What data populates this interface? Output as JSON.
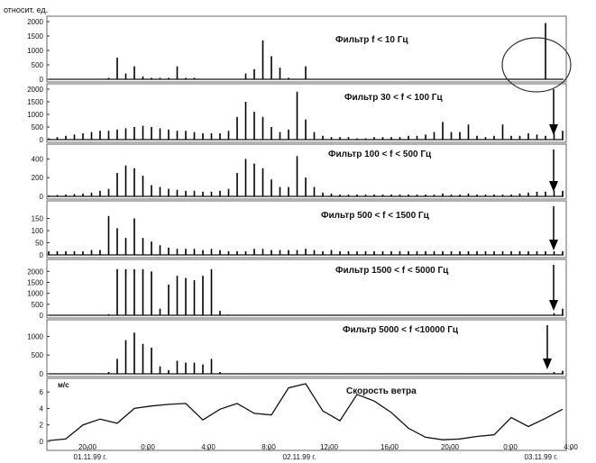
{
  "unit_label": "относит. ед.",
  "chart_data": [
    {
      "type": "area",
      "title": "Фильтр f < 10 Гц",
      "ylim": [
        0,
        2000
      ],
      "yticks": [
        "2000",
        "1500",
        "1000",
        "500",
        "0"
      ],
      "annotation": "circled spike",
      "x": [
        0,
        1,
        2,
        3,
        4,
        5,
        6,
        7,
        8,
        9,
        10,
        11,
        12,
        13,
        14,
        15,
        16,
        17,
        18,
        19,
        20,
        21,
        22,
        23,
        24,
        25,
        26,
        27,
        28,
        29,
        30,
        31,
        32,
        33,
        34,
        35,
        36,
        37,
        38,
        39,
        40,
        41,
        42,
        43,
        44,
        45,
        46,
        47,
        48,
        49,
        50,
        51,
        52,
        53,
        54,
        55,
        56,
        57,
        58,
        59,
        60
      ],
      "values": [
        0,
        0,
        0,
        0,
        0,
        0,
        0,
        50,
        750,
        200,
        450,
        100,
        50,
        50,
        50,
        450,
        50,
        50,
        0,
        0,
        0,
        0,
        0,
        200,
        350,
        1350,
        800,
        400,
        50,
        0,
        450,
        0,
        0,
        0,
        0,
        0,
        0,
        0,
        0,
        0,
        0,
        0,
        0,
        0,
        0,
        0,
        0,
        0,
        0,
        0,
        0,
        0,
        0,
        0,
        0,
        0,
        0,
        0,
        1950,
        0,
        0
      ]
    },
    {
      "type": "area",
      "title": "Фильтр 30 < f < 100 Гц",
      "ylim": [
        0,
        2000
      ],
      "yticks": [
        "2000",
        "1500",
        "1000",
        "500",
        "0"
      ],
      "x": [
        0,
        1,
        2,
        3,
        4,
        5,
        6,
        7,
        8,
        9,
        10,
        11,
        12,
        13,
        14,
        15,
        16,
        17,
        18,
        19,
        20,
        21,
        22,
        23,
        24,
        25,
        26,
        27,
        28,
        29,
        30,
        31,
        32,
        33,
        34,
        35,
        36,
        37,
        38,
        39,
        40,
        41,
        42,
        43,
        44,
        45,
        46,
        47,
        48,
        49,
        50,
        51,
        52,
        53,
        54,
        55,
        56,
        57,
        58,
        59,
        60
      ],
      "values": [
        50,
        100,
        150,
        200,
        250,
        300,
        350,
        350,
        400,
        450,
        500,
        550,
        500,
        450,
        400,
        350,
        350,
        300,
        250,
        250,
        250,
        350,
        900,
        1500,
        1100,
        900,
        500,
        300,
        400,
        1900,
        800,
        300,
        150,
        100,
        100,
        100,
        50,
        50,
        100,
        100,
        100,
        100,
        150,
        150,
        200,
        300,
        700,
        300,
        300,
        600,
        150,
        100,
        150,
        600,
        150,
        150,
        250,
        200,
        150,
        250,
        350
      ]
    },
    {
      "type": "area",
      "title": "Фильтр 100 < f < 500 Гц",
      "ylim": [
        0,
        500
      ],
      "yticks": [
        "400",
        "200",
        "0"
      ],
      "x": [
        0,
        1,
        2,
        3,
        4,
        5,
        6,
        7,
        8,
        9,
        10,
        11,
        12,
        13,
        14,
        15,
        16,
        17,
        18,
        19,
        20,
        21,
        22,
        23,
        24,
        25,
        26,
        27,
        28,
        29,
        30,
        31,
        32,
        33,
        34,
        35,
        36,
        37,
        38,
        39,
        40,
        41,
        42,
        43,
        44,
        45,
        46,
        47,
        48,
        49,
        50,
        51,
        52,
        53,
        54,
        55,
        56,
        57,
        58,
        59,
        60
      ],
      "values": [
        10,
        15,
        20,
        25,
        30,
        40,
        60,
        80,
        250,
        330,
        300,
        220,
        120,
        100,
        80,
        70,
        60,
        60,
        50,
        50,
        60,
        80,
        250,
        400,
        350,
        300,
        180,
        100,
        100,
        430,
        200,
        100,
        40,
        30,
        20,
        20,
        20,
        20,
        20,
        20,
        20,
        20,
        20,
        20,
        20,
        20,
        30,
        20,
        20,
        30,
        20,
        20,
        20,
        20,
        20,
        30,
        40,
        50,
        50,
        60,
        60
      ]
    },
    {
      "type": "area",
      "title": "Фильтр 500 < f < 1500 Гц",
      "ylim": [
        0,
        200
      ],
      "yticks": [
        "150",
        "100",
        "50",
        "0"
      ],
      "x": [
        0,
        1,
        2,
        3,
        4,
        5,
        6,
        7,
        8,
        9,
        10,
        11,
        12,
        13,
        14,
        15,
        16,
        17,
        18,
        19,
        20,
        21,
        22,
        23,
        24,
        25,
        26,
        27,
        28,
        29,
        30,
        31,
        32,
        33,
        34,
        35,
        36,
        37,
        38,
        39,
        40,
        41,
        42,
        43,
        44,
        45,
        46,
        47,
        48,
        49,
        50,
        51,
        52,
        53,
        54,
        55,
        56,
        57,
        58,
        59,
        60
      ],
      "values": [
        15,
        15,
        15,
        15,
        15,
        20,
        20,
        160,
        110,
        70,
        150,
        70,
        55,
        40,
        30,
        25,
        25,
        25,
        20,
        25,
        20,
        15,
        15,
        15,
        25,
        25,
        20,
        20,
        20,
        20,
        25,
        20,
        15,
        20,
        15,
        15,
        15,
        15,
        15,
        15,
        15,
        15,
        15,
        15,
        15,
        15,
        15,
        15,
        15,
        15,
        15,
        15,
        15,
        15,
        15,
        15,
        15,
        15,
        15,
        15,
        15
      ]
    },
    {
      "type": "area",
      "title": "Фильтр 1500 < f < 5000 Гц",
      "ylim": [
        0,
        2300
      ],
      "yticks": [
        "2000",
        "1500",
        "1000",
        "500",
        "0"
      ],
      "x": [
        0,
        1,
        2,
        3,
        4,
        5,
        6,
        7,
        8,
        9,
        10,
        11,
        12,
        13,
        14,
        15,
        16,
        17,
        18,
        19,
        20,
        21,
        22,
        23,
        24,
        25,
        26,
        27,
        28,
        29,
        30,
        31,
        32,
        33,
        34,
        35,
        36,
        37,
        38,
        39,
        40,
        41,
        42,
        43,
        44,
        45,
        46,
        47,
        48,
        49,
        50,
        51,
        52,
        53,
        54,
        55,
        56,
        57,
        58,
        59,
        60
      ],
      "values": [
        20,
        20,
        20,
        20,
        20,
        20,
        20,
        50,
        2100,
        2100,
        2100,
        2100,
        2000,
        300,
        1400,
        1800,
        1700,
        1600,
        1800,
        2100,
        200,
        30,
        20,
        20,
        20,
        20,
        20,
        20,
        20,
        20,
        20,
        20,
        20,
        20,
        20,
        20,
        20,
        20,
        20,
        20,
        20,
        20,
        20,
        20,
        20,
        20,
        20,
        20,
        20,
        20,
        20,
        20,
        20,
        20,
        20,
        20,
        20,
        20,
        20,
        100,
        300
      ]
    },
    {
      "type": "area",
      "title": "Фильтр 5000  < f <10000 Гц",
      "ylim": [
        0,
        1300
      ],
      "yticks": [
        "1000",
        "500",
        "0"
      ],
      "x": [
        0,
        1,
        2,
        3,
        4,
        5,
        6,
        7,
        8,
        9,
        10,
        11,
        12,
        13,
        14,
        15,
        16,
        17,
        18,
        19,
        20,
        21,
        22,
        23,
        24,
        25,
        26,
        27,
        28,
        29,
        30,
        31,
        32,
        33,
        34,
        35,
        36,
        37,
        38,
        39,
        40,
        41,
        42,
        43,
        44,
        45,
        46,
        47,
        48,
        49,
        50,
        51,
        52,
        53,
        54,
        55,
        56,
        57,
        58,
        59,
        60
      ],
      "values": [
        10,
        10,
        10,
        10,
        10,
        10,
        10,
        50,
        400,
        900,
        1100,
        800,
        700,
        200,
        100,
        350,
        300,
        300,
        250,
        400,
        50,
        10,
        10,
        10,
        10,
        10,
        10,
        10,
        10,
        10,
        10,
        10,
        10,
        10,
        10,
        10,
        10,
        10,
        10,
        10,
        10,
        10,
        10,
        10,
        10,
        10,
        10,
        10,
        10,
        10,
        10,
        10,
        10,
        10,
        10,
        10,
        10,
        10,
        10,
        50,
        80
      ]
    },
    {
      "type": "line",
      "title": "Скорость ветра",
      "ylabel": "м/с",
      "ylim": [
        0,
        7
      ],
      "yticks": [
        "6",
        "4",
        "2",
        "0"
      ],
      "x": [
        0,
        1,
        2,
        3,
        4,
        5,
        6,
        7,
        8,
        9,
        10,
        11,
        12,
        13,
        14,
        15,
        16,
        17,
        18,
        19,
        20,
        21,
        22,
        23,
        24,
        25,
        26,
        27,
        28,
        29,
        30
      ],
      "values": [
        0.1,
        0.3,
        2.0,
        2.7,
        2.2,
        4.0,
        4.3,
        4.5,
        4.6,
        2.6,
        3.9,
        4.6,
        3.4,
        3.2,
        6.5,
        7.0,
        3.7,
        2.5,
        5.7,
        4.9,
        3.5,
        1.6,
        0.5,
        0.2,
        0.3,
        0.6,
        0.8,
        2.9,
        1.8,
        2.8,
        3.9
      ],
      "xticks": [
        "20:00",
        "0:00",
        "4:00",
        "8:00",
        "12:00",
        "16:00",
        "20:00",
        "0:00",
        "4:00"
      ],
      "dates": [
        "01.11.99 г.",
        "02.11.99 г.",
        "03.11.99 г."
      ]
    }
  ]
}
